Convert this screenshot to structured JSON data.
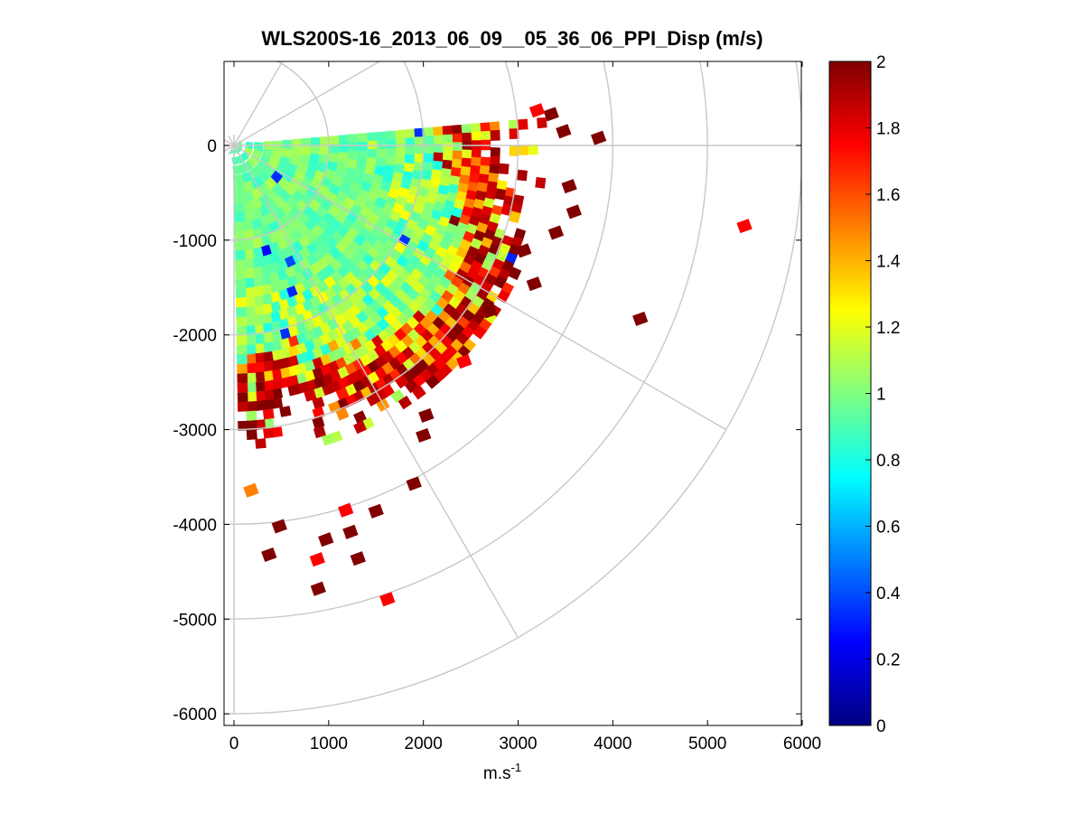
{
  "chart_data": {
    "type": "heatmap",
    "subtype": "polar-ppi-scan",
    "title": "WLS200S-16_2013_06_09__05_36_06_PPI_Disp (m/s)",
    "xlabel_base": "m.s",
    "xlabel_sup": "-1",
    "ylabel": "",
    "xlim": [
      -100,
      6000
    ],
    "ylim": [
      -6100,
      900
    ],
    "x_ticks": [
      0,
      1000,
      2000,
      3000,
      4000,
      5000,
      6000
    ],
    "x_tick_labels": [
      "0",
      "1000",
      "2000",
      "3000",
      "4000",
      "5000",
      "6000"
    ],
    "y_ticks": [
      0,
      -1000,
      -2000,
      -3000,
      -4000,
      -5000,
      -6000
    ],
    "y_tick_labels": [
      "0",
      "-1000",
      "-2000",
      "-3000",
      "-4000",
      "-5000",
      "-6000"
    ],
    "polar_grid": {
      "ring_radii": [
        1000,
        2000,
        3000,
        4000,
        5000,
        6000
      ],
      "spoke_angles_deg": [
        0,
        30,
        60,
        -30,
        -60,
        -90
      ]
    },
    "scan": {
      "azimuth_start_deg": 5,
      "azimuth_end_deg": -89,
      "max_dense_range": 3300,
      "gate_spacing": 100
    },
    "colorbar": {
      "colormap": "jet",
      "clim": [
        0,
        2
      ],
      "ticks": [
        0,
        0.2,
        0.4,
        0.6,
        0.8,
        1,
        1.2,
        1.4,
        1.6,
        1.8,
        2
      ],
      "tick_labels": [
        "0",
        "0.2",
        "0.4",
        "0.6",
        "0.8",
        "1",
        "1.2",
        "1.4",
        "1.6",
        "1.8",
        "2"
      ]
    },
    "outlier_points": [
      {
        "x": 3850,
        "y": 80,
        "v": 2
      },
      {
        "x": 5390,
        "y": -850,
        "v": 1.75
      },
      {
        "x": 4290,
        "y": -1830,
        "v": 2
      },
      {
        "x": 3540,
        "y": -430,
        "v": 2
      },
      {
        "x": 3590,
        "y": -700,
        "v": 2
      },
      {
        "x": 3400,
        "y": -920,
        "v": 2
      },
      {
        "x": 3060,
        "y": -1110,
        "v": 2
      },
      {
        "x": 3170,
        "y": -1460,
        "v": 2
      },
      {
        "x": 2700,
        "y": -1750,
        "v": 2
      },
      {
        "x": 2430,
        "y": -2280,
        "v": 1.75
      },
      {
        "x": 2030,
        "y": -2850,
        "v": 2
      },
      {
        "x": 2000,
        "y": -3060,
        "v": 2
      },
      {
        "x": 1900,
        "y": -3570,
        "v": 2
      },
      {
        "x": 1500,
        "y": -3860,
        "v": 2
      },
      {
        "x": 1180,
        "y": -3850,
        "v": 1.75
      },
      {
        "x": 1230,
        "y": -4080,
        "v": 2
      },
      {
        "x": 970,
        "y": -4160,
        "v": 2
      },
      {
        "x": 480,
        "y": -4020,
        "v": 2
      },
      {
        "x": 370,
        "y": -4320,
        "v": 2
      },
      {
        "x": 880,
        "y": -4370,
        "v": 1.75
      },
      {
        "x": 1310,
        "y": -4360,
        "v": 2
      },
      {
        "x": 890,
        "y": -4680,
        "v": 2
      },
      {
        "x": 1620,
        "y": -4790,
        "v": 1.75
      },
      {
        "x": 180,
        "y": -3640,
        "v": 1.5
      },
      {
        "x": 3350,
        "y": 330,
        "v": 2
      },
      {
        "x": 3200,
        "y": 370,
        "v": 1.75
      },
      {
        "x": 3480,
        "y": 150,
        "v": 2
      }
    ]
  }
}
